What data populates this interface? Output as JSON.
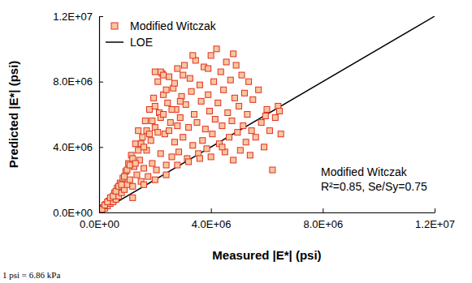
{
  "chart_data": {
    "type": "scatter",
    "x_label": "Measured |E*| (psi)",
    "y_label": "Predicted |E*| (psi)",
    "legend": "top-left",
    "grid": false,
    "xlim": [
      0,
      12000000
    ],
    "ylim": [
      0,
      12000000
    ],
    "xticks": [
      {
        "value": 0,
        "label": "0.0E+00"
      },
      {
        "value": 4000000,
        "label": "4.0E+06"
      },
      {
        "value": 8000000,
        "label": "8.0E+06"
      },
      {
        "value": 12000000,
        "label": "1.2E+07"
      }
    ],
    "yticks": [
      {
        "value": 0,
        "label": "0.0E+00"
      },
      {
        "value": 4000000,
        "label": "4.0E+06"
      },
      {
        "value": 8000000,
        "label": "8.0E+06"
      },
      {
        "value": 12000000,
        "label": "1.2E+07"
      }
    ],
    "annotations": [
      "Modified Witczak",
      "R²=0.85, Se/Sy=0.75"
    ],
    "note": "1 psi = 6.86 kPa",
    "series": [
      {
        "name": "LOE",
        "type": "line",
        "color": "#000000",
        "line_style": "solid",
        "x": [
          0,
          12000000
        ],
        "values": [
          0,
          12000000
        ]
      },
      {
        "name": "Modified Witczak",
        "type": "scatter",
        "color": "#e0301e",
        "marker": "square",
        "x": [
          20000,
          50000,
          80000,
          100000,
          150000,
          200000,
          250000,
          300000,
          350000,
          400000,
          450000,
          500000,
          550000,
          600000,
          650000,
          700000,
          750000,
          800000,
          850000,
          900000,
          950000,
          1000000,
          1050000,
          1100000,
          1150000,
          1200000,
          1250000,
          1300000,
          1350000,
          1400000,
          1450000,
          1500000,
          1550000,
          1600000,
          1650000,
          1700000,
          1750000,
          1800000,
          1850000,
          1900000,
          1950000,
          2000000,
          2050000,
          2100000,
          2150000,
          2200000,
          2250000,
          2300000,
          2350000,
          2400000,
          2450000,
          2500000,
          2550000,
          2600000,
          2650000,
          2700000,
          2750000,
          2800000,
          2850000,
          2900000,
          2950000,
          3000000,
          3050000,
          3100000,
          3150000,
          3200000,
          3250000,
          3300000,
          3350000,
          3400000,
          3450000,
          3500000,
          3550000,
          3600000,
          3650000,
          3700000,
          3750000,
          3800000,
          3850000,
          3900000,
          3950000,
          4000000,
          4050000,
          4100000,
          4150000,
          4200000,
          4250000,
          4300000,
          4350000,
          4400000,
          4450000,
          4500000,
          4550000,
          4600000,
          4650000,
          4700000,
          4750000,
          4800000,
          4850000,
          4900000,
          4950000,
          5000000,
          5050000,
          5100000,
          5150000,
          5200000,
          5250000,
          5300000,
          5350000,
          5400000,
          5450000,
          5500000,
          5600000,
          5700000,
          5800000,
          5900000,
          6000000,
          6100000,
          6200000,
          6300000,
          6400000,
          6500000,
          6450000,
          5950000,
          100000,
          200000,
          300000,
          400000,
          500000,
          600000,
          700000,
          800000,
          900000,
          1000000,
          1100000,
          1200000,
          1300000,
          1400000,
          1500000,
          1600000,
          1700000,
          1800000,
          1900000,
          2000000,
          2100000,
          2200000,
          2300000,
          2400000,
          2500000,
          2600000,
          2700000,
          2800000,
          2900000,
          3000000,
          1200000,
          1600000,
          2000000,
          2400000,
          2800000,
          3200000,
          3600000,
          4000000,
          4400000,
          2200000,
          2000000,
          2300000,
          3350000,
          3900000,
          4800000
        ],
        "values": [
          30000,
          80000,
          150000,
          100000,
          300000,
          250000,
          500000,
          400000,
          700000,
          550000,
          900000,
          650000,
          1200000,
          800000,
          1500000,
          1000000,
          1800000,
          1200000,
          2100000,
          1400000,
          2500000,
          1700000,
          3000000,
          2000000,
          3500000,
          1600000,
          2800000,
          4200000,
          2300000,
          5000000,
          3200000,
          1900000,
          4600000,
          2700000,
          5600000,
          3800000,
          2200000,
          6300000,
          4400000,
          3000000,
          7000000,
          5200000,
          2600000,
          8000000,
          6100000,
          3600000,
          8500000,
          7200000,
          4800000,
          2900000,
          6700000,
          8300000,
          5500000,
          3400000,
          7600000,
          4300000,
          6300000,
          8800000,
          3700000,
          5800000,
          7100000,
          4600000,
          9000000,
          6600000,
          3300000,
          5200000,
          8200000,
          7400000,
          4100000,
          6000000,
          9300000,
          5500000,
          3600000,
          7800000,
          6800000,
          4400000,
          8900000,
          5100000,
          3900000,
          7200000,
          6200000,
          9600000,
          4800000,
          8000000,
          5700000,
          10000000,
          6700000,
          4200000,
          8600000,
          5300000,
          7500000,
          3700000,
          9200000,
          6100000,
          4600000,
          8100000,
          5600000,
          3200000,
          7000000,
          9000000,
          4900000,
          6500000,
          3800000,
          8400000,
          5300000,
          7300000,
          4300000,
          6000000,
          8000000,
          3500000,
          5000000,
          6900000,
          4600000,
          7500000,
          5500000,
          4000000,
          6300000,
          5000000,
          2600000,
          5800000,
          6500000,
          4800000,
          6200000,
          5900000,
          200000,
          450000,
          650000,
          900000,
          1000000,
          1300000,
          1600000,
          1700000,
          2200000,
          2600000,
          2900000,
          3300000,
          3000000,
          3800000,
          4200000,
          4000000,
          5000000,
          4800000,
          5600000,
          6500000,
          4900000,
          5800000,
          6000000,
          7500000,
          5000000,
          6300000,
          7900000,
          5300000,
          6800000,
          8400000,
          900000,
          1700000,
          2000000,
          2300000,
          2900000,
          3100000,
          3300000,
          3400000,
          4000000,
          8600000,
          8600000,
          8400000,
          9600000,
          8800000,
          9700000
        ]
      }
    ]
  }
}
